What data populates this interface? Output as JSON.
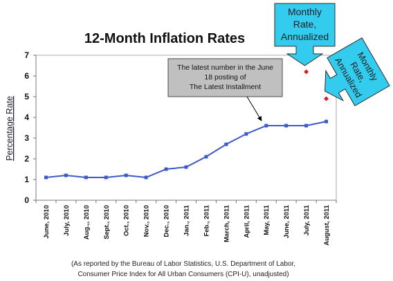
{
  "chart_data": {
    "type": "line",
    "title": "12-Month Inflation Rates",
    "ylabel": "Percentage Rate",
    "ylim": [
      0,
      7
    ],
    "yticks": [
      0,
      1,
      2,
      3,
      4,
      5,
      6,
      7
    ],
    "categories": [
      "June, 2010",
      "July, 2010",
      "Aug.,, 2010",
      "Sept., 2010",
      "Oct., 2010",
      "Nov., 2010",
      "Dec., 2010",
      "Jan., 2011",
      "Feb., 2011",
      "March, 2011",
      "April, 2011",
      "May, 2011",
      "June, 2011",
      "July, 2011",
      "August, 2011"
    ],
    "series": [
      {
        "values": [
          1.1,
          1.2,
          1.1,
          1.1,
          1.2,
          1.1,
          1.5,
          1.6,
          2.1,
          2.7,
          3.2,
          3.6,
          3.6,
          3.6,
          3.8
        ],
        "color": "#3a58c9"
      },
      {
        "values": [
          null,
          null,
          null,
          null,
          null,
          null,
          null,
          null,
          null,
          null,
          null,
          null,
          null,
          6.2,
          4.9
        ],
        "color": "#d0202e"
      }
    ],
    "grid": false,
    "legend": "none",
    "annotations": [
      {
        "text": [
          "The latest number in the June",
          "18 posting of",
          "The Latest Installment"
        ],
        "fill": "#c0c0c0"
      },
      {
        "text": [
          "Monthly",
          "Rate,",
          "Annualized"
        ],
        "fill": "#33ccee"
      },
      {
        "text": [
          "Monthly",
          "Rate,",
          "Annualized"
        ],
        "fill": "#33ccee"
      }
    ],
    "source_note": [
      "(As reported by the Bureau of Labor Statistics, U.S. Department of Labor,",
      "Consumer Price Index for All Urban Consumers (CPI-U), unadjusted)"
    ]
  }
}
